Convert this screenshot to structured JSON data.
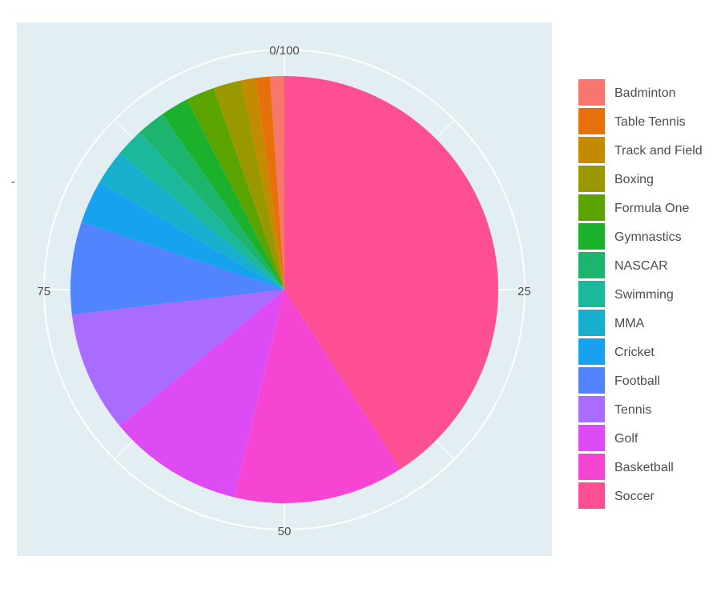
{
  "chart_data": {
    "type": "pie",
    "title": "",
    "y_axis_label": "-",
    "theta_ticks": [
      "0/100",
      "25",
      "50",
      "75"
    ],
    "categories": [
      "Badminton",
      "Table Tennis",
      "Track and Field",
      "Boxing",
      "Formula One",
      "Gymnastics",
      "NASCAR",
      "Swimming",
      "MMA",
      "Cricket",
      "Football",
      "Tennis",
      "Golf",
      "Basketball",
      "Soccer"
    ],
    "values": [
      1.0,
      1.0,
      1.0,
      2.0,
      2.0,
      2.0,
      2.0,
      2.0,
      2.5,
      3.0,
      6.5,
      8.5,
      9.5,
      12.0,
      38.0
    ],
    "colors": [
      "#F8766D",
      "#E6710A",
      "#C48A00",
      "#999800",
      "#5BA300",
      "#1CB12C",
      "#1DB46E",
      "#1BB89C",
      "#17AFCE",
      "#17A1EE",
      "#5384FF",
      "#AA6CFF",
      "#DD4BF5",
      "#F645D2",
      "#FF4F93"
    ],
    "legend_position": "right",
    "grid": true,
    "panel_background": "#E3EEF2"
  }
}
